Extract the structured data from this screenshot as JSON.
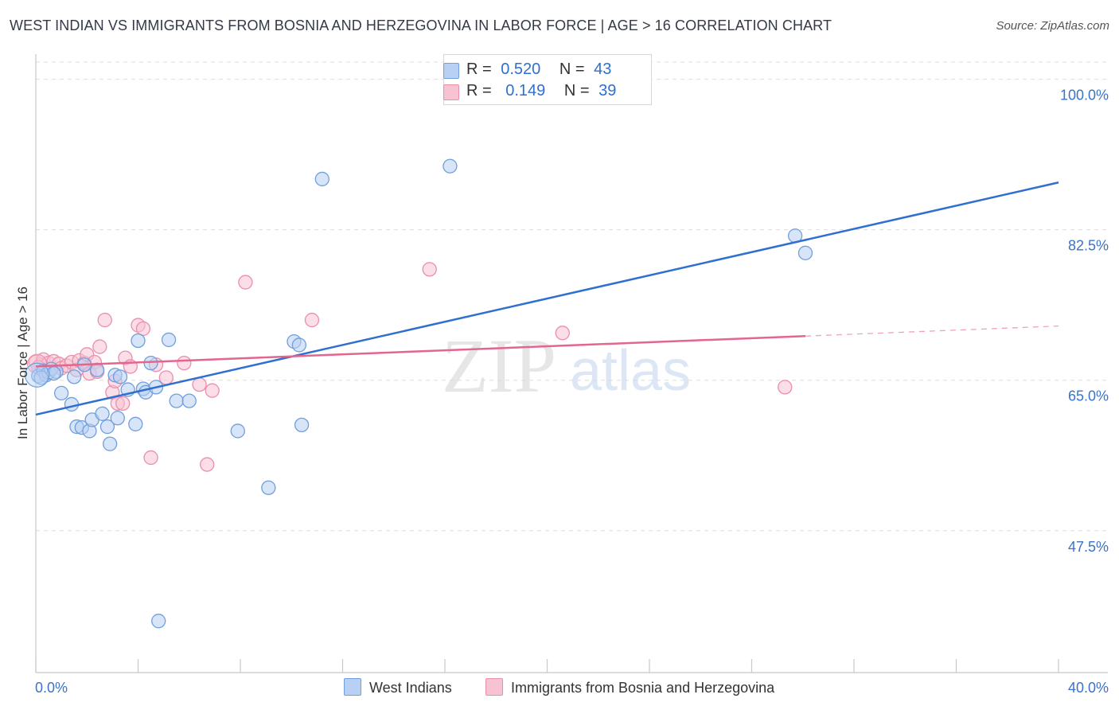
{
  "title": "WEST INDIAN VS IMMIGRANTS FROM BOSNIA AND HERZEGOVINA IN LABOR FORCE | AGE > 16 CORRELATION CHART",
  "source": "Source: ZipAtlas.com",
  "watermark": {
    "zip": "ZIP",
    "atlas": "atlas"
  },
  "legend": {
    "rows": [
      {
        "r_label": "R =",
        "r_value": "0.520",
        "n_label": "N =",
        "n_value": "43"
      },
      {
        "r_label": "R =",
        "r_value": "0.149",
        "n_label": "N =",
        "n_value": "39"
      }
    ]
  },
  "bottom_legend": [
    "West Indians",
    "Immigrants from Bosnia and Herzegovina"
  ],
  "colors": {
    "blue_fill": "#b8d0f3",
    "blue_stroke": "#6f9fdd",
    "blue_line": "#2f6fd0",
    "pink_fill": "#f7c3d3",
    "pink_stroke": "#e98fac",
    "pink_line": "#e3668f",
    "tick_text": "#3b73c8",
    "grid": "#dddddd"
  },
  "chart_data": {
    "type": "scatter",
    "title": "WEST INDIAN VS IMMIGRANTS FROM BOSNIA AND HERZEGOVINA IN LABOR FORCE | AGE > 16 CORRELATION CHART",
    "xlabel": "",
    "ylabel": "In Labor Force | Age > 16",
    "xlim": [
      0,
      40
    ],
    "ylim": [
      31,
      102
    ],
    "x_tick_labels": [
      {
        "value": 0,
        "label": "0.0%"
      },
      {
        "value": 40,
        "label": "40.0%"
      }
    ],
    "y_tick_labels": [
      {
        "value": 100,
        "label": "100.0%"
      },
      {
        "value": 82.5,
        "label": "82.5%"
      },
      {
        "value": 65,
        "label": "65.0%"
      },
      {
        "value": 47.5,
        "label": "47.5%"
      }
    ],
    "grid": true,
    "legend_position": "top-center",
    "series": [
      {
        "name": "West Indians",
        "r": 0.52,
        "n": 43,
        "trend": {
          "x0": 0,
          "y0": 61.0,
          "x1": 40,
          "y1": 88.0,
          "dashed_from": null
        },
        "points": [
          [
            0.1,
            65.5
          ],
          [
            0.3,
            66.1
          ],
          [
            0.4,
            65.6
          ],
          [
            0.5,
            65.9
          ],
          [
            0.6,
            66.3
          ],
          [
            0.8,
            66.0
          ],
          [
            1.0,
            63.5
          ],
          [
            1.4,
            62.2
          ],
          [
            1.5,
            65.4
          ],
          [
            1.6,
            59.6
          ],
          [
            1.8,
            59.5
          ],
          [
            1.9,
            66.8
          ],
          [
            2.1,
            59.1
          ],
          [
            2.2,
            60.4
          ],
          [
            2.4,
            66.2
          ],
          [
            2.6,
            61.1
          ],
          [
            2.8,
            59.6
          ],
          [
            2.9,
            57.6
          ],
          [
            3.1,
            65.6
          ],
          [
            3.2,
            60.6
          ],
          [
            3.3,
            65.4
          ],
          [
            3.6,
            63.9
          ],
          [
            3.9,
            59.9
          ],
          [
            4.0,
            69.6
          ],
          [
            4.2,
            64.0
          ],
          [
            4.3,
            63.6
          ],
          [
            4.5,
            67.0
          ],
          [
            4.7,
            64.2
          ],
          [
            4.8,
            37.0
          ],
          [
            5.2,
            69.7
          ],
          [
            5.5,
            62.6
          ],
          [
            6.0,
            62.6
          ],
          [
            7.9,
            59.1
          ],
          [
            9.1,
            52.5
          ],
          [
            10.1,
            69.5
          ],
          [
            10.3,
            69.1
          ],
          [
            10.4,
            59.8
          ],
          [
            11.2,
            88.4
          ],
          [
            16.2,
            89.9
          ],
          [
            29.7,
            81.8
          ],
          [
            30.1,
            79.8
          ],
          [
            0.2,
            65.3
          ],
          [
            0.7,
            65.8
          ]
        ]
      },
      {
        "name": "Immigrants from Bosnia and Herzegovina",
        "r": 0.149,
        "n": 39,
        "trend": {
          "x0": 0,
          "y0": 66.6,
          "x1": 40,
          "y1": 71.3,
          "dashed_from": 30.1
        },
        "points": [
          [
            0.0,
            67.1
          ],
          [
            0.2,
            66.8
          ],
          [
            0.3,
            67.4
          ],
          [
            0.5,
            67.0
          ],
          [
            0.7,
            67.2
          ],
          [
            0.9,
            66.9
          ],
          [
            1.0,
            66.4
          ],
          [
            1.2,
            66.7
          ],
          [
            1.4,
            67.1
          ],
          [
            1.6,
            66.2
          ],
          [
            1.7,
            67.3
          ],
          [
            1.9,
            67.0
          ],
          [
            2.0,
            68.0
          ],
          [
            2.1,
            65.8
          ],
          [
            2.3,
            67.1
          ],
          [
            2.4,
            66.0
          ],
          [
            2.5,
            68.9
          ],
          [
            2.7,
            72.0
          ],
          [
            3.0,
            63.6
          ],
          [
            3.1,
            64.9
          ],
          [
            3.2,
            62.3
          ],
          [
            3.4,
            62.3
          ],
          [
            3.5,
            67.6
          ],
          [
            3.7,
            66.6
          ],
          [
            4.0,
            71.4
          ],
          [
            4.2,
            71.0
          ],
          [
            4.5,
            56.0
          ],
          [
            4.7,
            66.8
          ],
          [
            5.1,
            65.3
          ],
          [
            5.8,
            67.0
          ],
          [
            6.4,
            64.5
          ],
          [
            6.7,
            55.2
          ],
          [
            6.9,
            63.8
          ],
          [
            8.2,
            76.4
          ],
          [
            10.8,
            72.0
          ],
          [
            15.4,
            77.9
          ],
          [
            20.6,
            70.5
          ],
          [
            29.3,
            64.2
          ],
          [
            0.1,
            66.5
          ]
        ]
      }
    ]
  }
}
